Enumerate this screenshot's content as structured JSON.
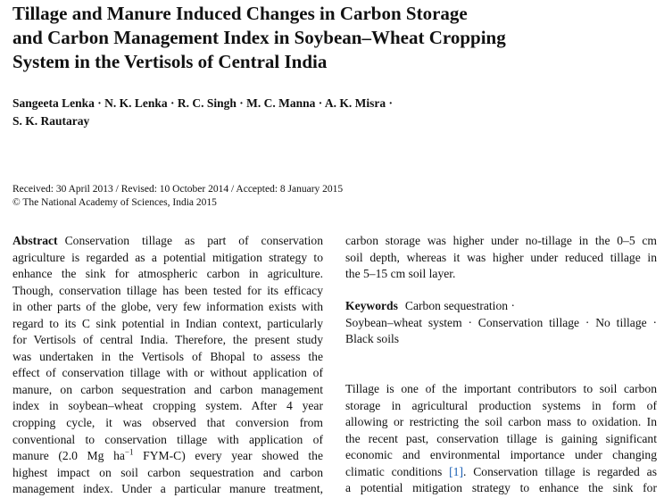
{
  "header": {
    "title_lines": [
      "Tillage and Manure Induced Changes in Carbon Storage",
      "and Carbon Management Index in Soybean–Wheat Cropping",
      "System in the Vertisols of Central India"
    ],
    "author_lines": [
      "Sangeeta Lenka · N. K. Lenka · R. C. Singh · M. C. Manna · A. K. Misra ·",
      "S. K. Rautaray"
    ],
    "dates": "Received: 30 April 2013 / Revised: 10 October 2014 / Accepted: 8 January 2015",
    "copyright": "© The National Academy of Sciences, India 2015"
  },
  "abstract": {
    "label": "Abstract",
    "lines": [
      "Conservation tillage as part of conservation",
      "agriculture is regarded as a potential mitigation strategy to",
      "enhance the sink for atmospheric carbon in agriculture.",
      "Though, conservation tillage has been tested for its efficacy",
      "in other parts of the globe, very few information exists with",
      "regard to its C sink potential in Indian context, particularly",
      "for Vertisols of central India. Therefore, the present study",
      "was undertaken in the Vertisols of Bhopal to assess the",
      "effect of conservation tillage with or without application of",
      "manure, on carbon sequestration and carbon management",
      "index in soybean–wheat cropping system. After 4 year",
      "cropping cycle, it was observed that conversion from",
      "conventional to conservation tillage with application of",
      {
        "before": "manure (2.0 Mg ha",
        "sup": "−1",
        "after": " FYM-C) every year showed the"
      },
      "highest impact on soil carbon sequestration and carbon",
      "management index. Under a particular manure treatment,",
      "carbon storage was higher under no-tillage in the 0–5 cm",
      "soil depth, whereas it was higher under reduced tillage in",
      "the 5–15 cm soil layer."
    ]
  },
  "keywords": {
    "label": "Keywords",
    "lines": [
      "Carbon sequestration ·",
      "Soybean–wheat system · Conservation tillage · No tillage ·",
      "Black soils"
    ]
  },
  "introduction": {
    "lines": [
      "Tillage is one of the important contributors to soil carbon",
      "storage in agricultural production systems in form of",
      "allowing or restricting the soil carbon mass to oxidation. In",
      "the recent past, conservation tillage is gaining significant",
      "economic and environmental importance under changing",
      {
        "before": "climatic conditions ",
        "ref": "[1]",
        "after": ". Conservation tillage is regarded as"
      },
      "a potential mitigation strategy to enhance the sink for"
    ]
  }
}
